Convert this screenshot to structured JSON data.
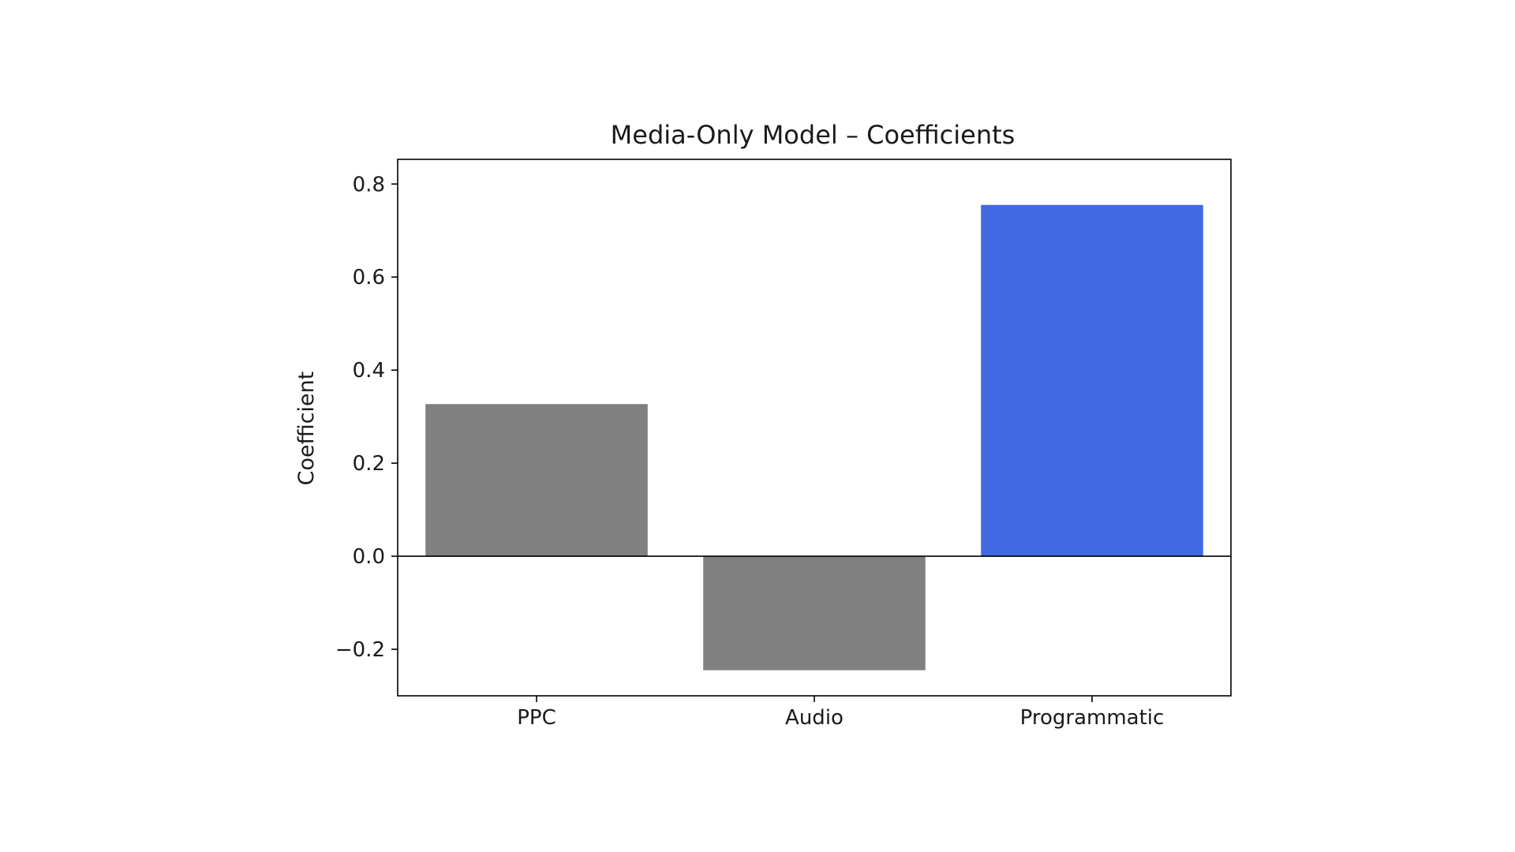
{
  "chart_data": {
    "type": "bar",
    "title": "Media-Only Model – Coefficients",
    "xlabel": "",
    "ylabel": "Coefficient",
    "categories": [
      "PPC",
      "Audio",
      "Programmatic"
    ],
    "values": [
      0.327,
      -0.245,
      0.755
    ],
    "bar_colors": [
      "#808080",
      "#808080",
      "#4169e1"
    ],
    "ylim": [
      -0.3,
      0.853
    ],
    "yticks": [
      -0.2,
      0.0,
      0.2,
      0.4,
      0.6,
      0.8
    ],
    "ytick_labels": [
      "−0.2",
      "0.0",
      "0.2",
      "0.4",
      "0.6",
      "0.8"
    ],
    "zero_line": true,
    "grid": false,
    "legend": "none"
  }
}
